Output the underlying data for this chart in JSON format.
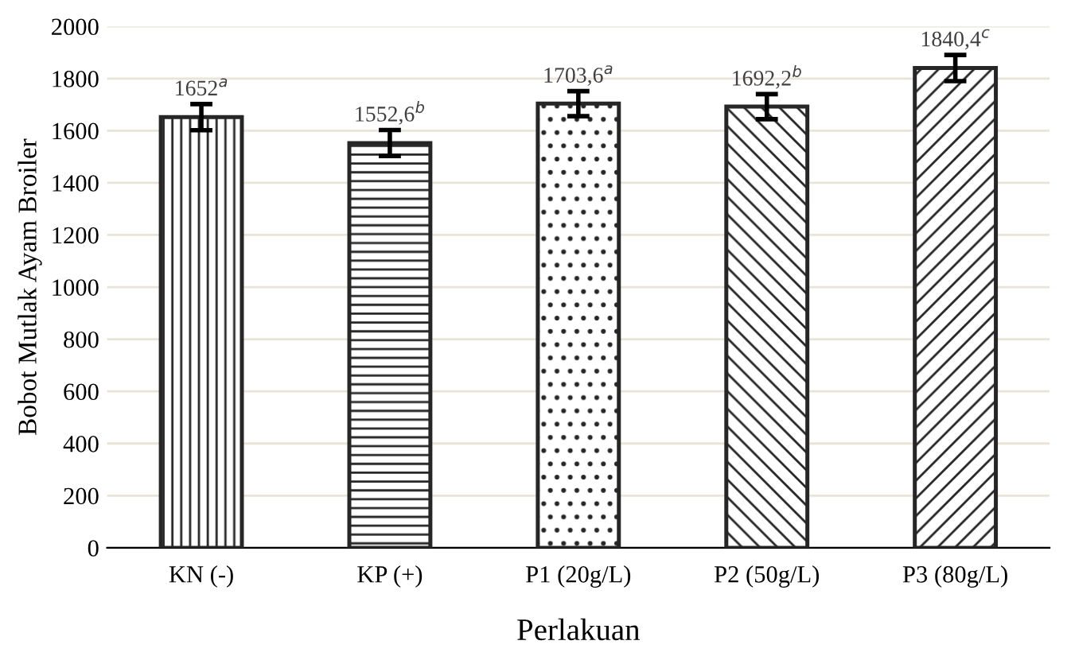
{
  "chart_data": {
    "type": "bar",
    "xlabel": "Perlakuan",
    "ylabel": "Bobot Mutlak Ayam Broiler",
    "categories": [
      "KN (-)",
      "KP (+)",
      "P1 (20g/L)",
      "P2 (50g/L)",
      "P3 (80g/L)"
    ],
    "values": [
      1652,
      1552.6,
      1703.6,
      1692.2,
      1840.4
    ],
    "errors": [
      50,
      50,
      48,
      48,
      50
    ],
    "value_labels": [
      "1652$^{a}$",
      "1552,6$^{b}$",
      "1703,6$^{a}$",
      "1692,2$^{b}$",
      "1840,4$^{c}$"
    ],
    "color": "#262626",
    "ylim": [
      0,
      2000
    ],
    "yticks": [
      0,
      200,
      400,
      600,
      800,
      1000,
      1200,
      1400,
      1600,
      1800,
      2000
    ],
    "grid": "y"
  }
}
